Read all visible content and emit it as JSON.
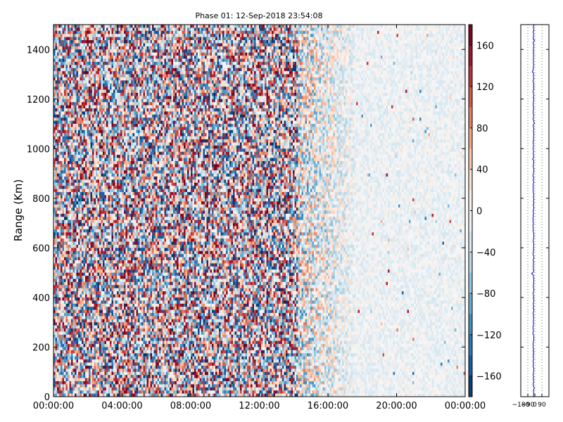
{
  "chart_data": [
    {
      "type": "heatmap",
      "title": "Phase 01: 12-Sep-2018 23:54:08",
      "xlabel": "",
      "ylabel": "Range (Km)",
      "x_ticks": [
        "00:00:00",
        "04:00:00",
        "08:00:00",
        "12:00:00",
        "16:00:00",
        "20:00:00",
        "00:00:00"
      ],
      "x_range_hours": [
        0,
        24
      ],
      "y_ticks": [
        0,
        200,
        400,
        600,
        800,
        1000,
        1200,
        1400
      ],
      "ylim": [
        0,
        1500
      ],
      "colorbar": {
        "ticks": [
          -160,
          -120,
          -80,
          -40,
          0,
          40,
          80,
          120,
          160
        ],
        "range": [
          -180,
          180
        ],
        "colors": {
          "low": "#053061",
          "mid": "#f7f7f7",
          "high": "#67001f"
        }
      },
      "regions": [
        {
          "hours": [
            0,
            14.3
          ],
          "character": "random phase",
          "spread_deg": 180
        },
        {
          "hours": [
            14.3,
            17.5
          ],
          "character": "transition",
          "spread_deg": 120
        },
        {
          "hours": [
            17.5,
            24
          ],
          "character": "smooth",
          "mean_deg": -10,
          "spread_deg": 25
        }
      ]
    },
    {
      "type": "line",
      "title": "",
      "x_ticks": [
        -180,
        -90,
        0,
        90
      ],
      "x_tick_labels": [
        "−180",
        "−90",
        "0",
        "90"
      ],
      "xlim": [
        -180,
        180
      ],
      "ylim": [
        0,
        1500
      ],
      "series_color": "#0000cc",
      "mean_phase_deg": -18,
      "spread_deg": 6
    }
  ]
}
